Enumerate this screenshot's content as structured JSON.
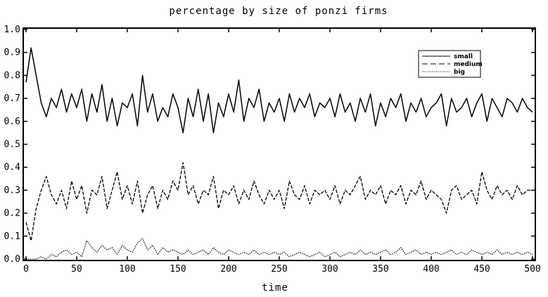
{
  "chart_data": {
    "type": "line",
    "title": "percentage by size of ponzi firms",
    "xlabel": "time",
    "ylabel": "",
    "xlim": [
      0,
      500
    ],
    "ylim": [
      0.0,
      1.0
    ],
    "xticks": [
      "0",
      "50",
      "100",
      "150",
      "200",
      "250",
      "300",
      "350",
      "400",
      "450",
      "500"
    ],
    "yticks": [
      "0.0",
      "0.1",
      "0.2",
      "0.3",
      "0.4",
      "0.5",
      "0.6",
      "0.7",
      "0.8",
      "0.9",
      "1.0"
    ],
    "grid": false,
    "legend_position": "top-right",
    "series": [
      {
        "name": "small",
        "style": "solid",
        "x": [
          0,
          5,
          10,
          15,
          20,
          25,
          30,
          35,
          40,
          45,
          50,
          55,
          60,
          65,
          70,
          75,
          80,
          85,
          90,
          95,
          100,
          105,
          110,
          115,
          120,
          125,
          130,
          135,
          140,
          145,
          150,
          155,
          160,
          165,
          170,
          175,
          180,
          185,
          190,
          195,
          200,
          205,
          210,
          215,
          220,
          225,
          230,
          235,
          240,
          245,
          250,
          255,
          260,
          265,
          270,
          275,
          280,
          285,
          290,
          295,
          300,
          305,
          310,
          315,
          320,
          325,
          330,
          335,
          340,
          345,
          350,
          355,
          360,
          365,
          370,
          375,
          380,
          385,
          390,
          395,
          400,
          405,
          410,
          415,
          420,
          425,
          430,
          435,
          440,
          445,
          450,
          455,
          460,
          465,
          470,
          475,
          480,
          485,
          490,
          495,
          500
        ],
        "values": [
          0.77,
          0.92,
          0.8,
          0.68,
          0.62,
          0.7,
          0.66,
          0.74,
          0.64,
          0.72,
          0.66,
          0.74,
          0.6,
          0.72,
          0.64,
          0.76,
          0.6,
          0.7,
          0.58,
          0.68,
          0.66,
          0.72,
          0.58,
          0.8,
          0.64,
          0.72,
          0.6,
          0.66,
          0.62,
          0.72,
          0.66,
          0.55,
          0.7,
          0.62,
          0.74,
          0.6,
          0.72,
          0.55,
          0.68,
          0.62,
          0.72,
          0.64,
          0.78,
          0.6,
          0.7,
          0.66,
          0.74,
          0.6,
          0.68,
          0.64,
          0.7,
          0.6,
          0.72,
          0.64,
          0.7,
          0.66,
          0.72,
          0.62,
          0.68,
          0.66,
          0.7,
          0.62,
          0.72,
          0.64,
          0.68,
          0.6,
          0.7,
          0.64,
          0.72,
          0.58,
          0.68,
          0.62,
          0.7,
          0.66,
          0.72,
          0.6,
          0.68,
          0.64,
          0.7,
          0.62,
          0.66,
          0.68,
          0.72,
          0.58,
          0.7,
          0.64,
          0.66,
          0.7,
          0.62,
          0.68,
          0.72,
          0.6,
          0.7,
          0.66,
          0.62,
          0.7,
          0.68,
          0.64,
          0.7,
          0.66,
          0.64
        ]
      },
      {
        "name": "medium",
        "style": "dashed",
        "x": [
          0,
          5,
          10,
          15,
          20,
          25,
          30,
          35,
          40,
          45,
          50,
          55,
          60,
          65,
          70,
          75,
          80,
          85,
          90,
          95,
          100,
          105,
          110,
          115,
          120,
          125,
          130,
          135,
          140,
          145,
          150,
          155,
          160,
          165,
          170,
          175,
          180,
          185,
          190,
          195,
          200,
          205,
          210,
          215,
          220,
          225,
          230,
          235,
          240,
          245,
          250,
          255,
          260,
          265,
          270,
          275,
          280,
          285,
          290,
          295,
          300,
          305,
          310,
          315,
          320,
          325,
          330,
          335,
          340,
          345,
          350,
          355,
          360,
          365,
          370,
          375,
          380,
          385,
          390,
          395,
          400,
          405,
          410,
          415,
          420,
          425,
          430,
          435,
          440,
          445,
          450,
          455,
          460,
          465,
          470,
          475,
          480,
          485,
          490,
          495,
          500
        ],
        "values": [
          0.16,
          0.08,
          0.22,
          0.3,
          0.36,
          0.28,
          0.24,
          0.3,
          0.22,
          0.34,
          0.26,
          0.32,
          0.2,
          0.3,
          0.28,
          0.36,
          0.22,
          0.3,
          0.38,
          0.26,
          0.32,
          0.24,
          0.34,
          0.2,
          0.28,
          0.32,
          0.22,
          0.3,
          0.26,
          0.34,
          0.3,
          0.42,
          0.28,
          0.32,
          0.24,
          0.3,
          0.28,
          0.36,
          0.22,
          0.3,
          0.28,
          0.32,
          0.24,
          0.3,
          0.26,
          0.34,
          0.28,
          0.24,
          0.3,
          0.26,
          0.3,
          0.22,
          0.34,
          0.28,
          0.26,
          0.32,
          0.24,
          0.3,
          0.28,
          0.3,
          0.26,
          0.32,
          0.24,
          0.3,
          0.28,
          0.32,
          0.36,
          0.26,
          0.3,
          0.28,
          0.32,
          0.24,
          0.3,
          0.28,
          0.32,
          0.24,
          0.3,
          0.28,
          0.34,
          0.26,
          0.3,
          0.28,
          0.26,
          0.2,
          0.3,
          0.32,
          0.26,
          0.28,
          0.3,
          0.24,
          0.38,
          0.3,
          0.26,
          0.32,
          0.28,
          0.3,
          0.26,
          0.32,
          0.28,
          0.3,
          0.3
        ]
      },
      {
        "name": "big",
        "style": "dotted",
        "x": [
          0,
          5,
          10,
          15,
          20,
          25,
          30,
          35,
          40,
          45,
          50,
          55,
          60,
          65,
          70,
          75,
          80,
          85,
          90,
          95,
          100,
          105,
          110,
          115,
          120,
          125,
          130,
          135,
          140,
          145,
          150,
          155,
          160,
          165,
          170,
          175,
          180,
          185,
          190,
          195,
          200,
          205,
          210,
          215,
          220,
          225,
          230,
          235,
          240,
          245,
          250,
          255,
          260,
          265,
          270,
          275,
          280,
          285,
          290,
          295,
          300,
          305,
          310,
          315,
          320,
          325,
          330,
          335,
          340,
          345,
          350,
          355,
          360,
          365,
          370,
          375,
          380,
          385,
          390,
          395,
          400,
          405,
          410,
          415,
          420,
          425,
          430,
          435,
          440,
          445,
          450,
          455,
          460,
          465,
          470,
          475,
          480,
          485,
          490,
          495,
          500
        ],
        "values": [
          0.0,
          0.0,
          0.0,
          0.01,
          0.0,
          0.02,
          0.01,
          0.03,
          0.04,
          0.02,
          0.03,
          0.01,
          0.08,
          0.05,
          0.03,
          0.06,
          0.04,
          0.05,
          0.02,
          0.06,
          0.04,
          0.03,
          0.07,
          0.09,
          0.04,
          0.06,
          0.02,
          0.05,
          0.03,
          0.04,
          0.03,
          0.02,
          0.04,
          0.02,
          0.03,
          0.04,
          0.02,
          0.05,
          0.03,
          0.02,
          0.04,
          0.03,
          0.02,
          0.03,
          0.02,
          0.04,
          0.02,
          0.03,
          0.02,
          0.03,
          0.02,
          0.03,
          0.01,
          0.02,
          0.03,
          0.02,
          0.01,
          0.02,
          0.03,
          0.01,
          0.02,
          0.03,
          0.01,
          0.02,
          0.03,
          0.02,
          0.04,
          0.02,
          0.03,
          0.02,
          0.03,
          0.04,
          0.02,
          0.03,
          0.05,
          0.02,
          0.03,
          0.04,
          0.02,
          0.03,
          0.02,
          0.03,
          0.02,
          0.03,
          0.04,
          0.02,
          0.03,
          0.02,
          0.04,
          0.03,
          0.02,
          0.03,
          0.02,
          0.04,
          0.02,
          0.03,
          0.02,
          0.03,
          0.02,
          0.03,
          0.02
        ]
      }
    ]
  }
}
